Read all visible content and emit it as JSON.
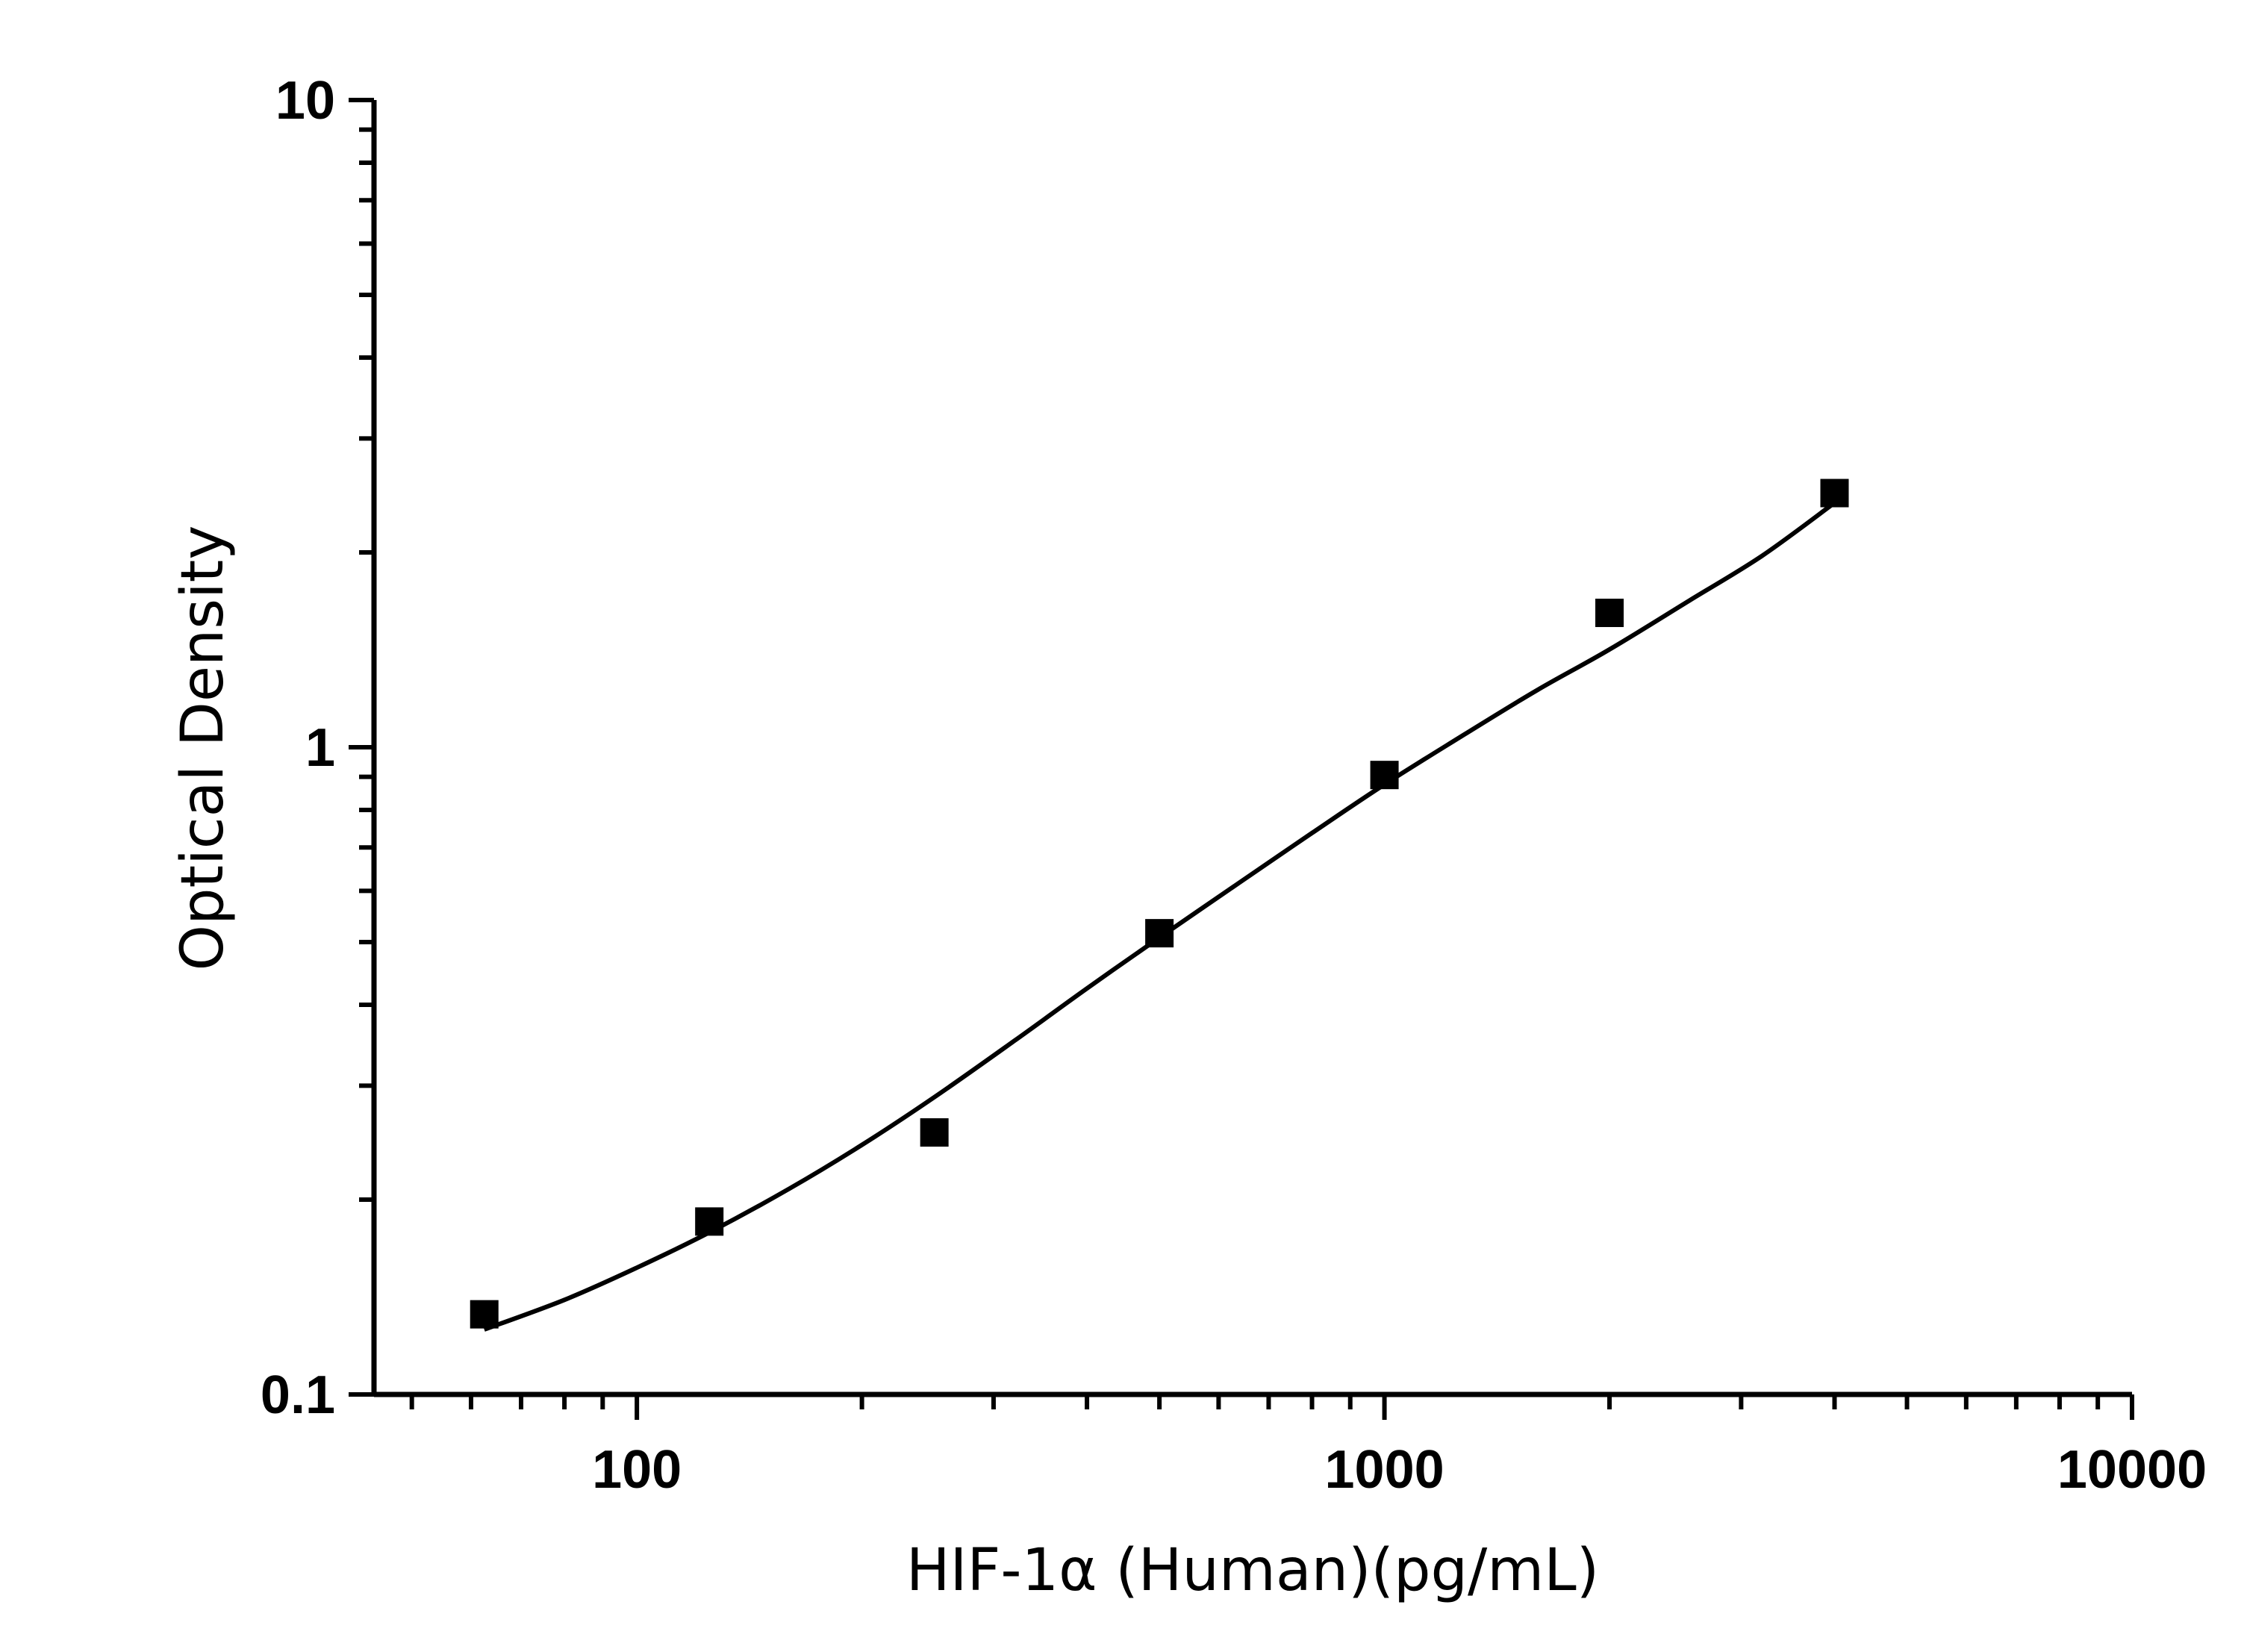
{
  "chart_data": {
    "type": "scatter",
    "xlabel": "HIF-1α (Human)(pg/mL)",
    "ylabel": "Optical Density",
    "x_scale": "log",
    "y_scale": "log",
    "xlim": [
      44.5,
      10000
    ],
    "ylim": [
      0.1,
      10
    ],
    "x_ticks": [
      {
        "value": 100,
        "label": "100"
      },
      {
        "value": 1000,
        "label": "1000"
      },
      {
        "value": 10000,
        "label": "10000"
      }
    ],
    "y_ticks": [
      {
        "value": 0.1,
        "label": "0.1"
      },
      {
        "value": 1,
        "label": "1"
      },
      {
        "value": 10,
        "label": "10"
      }
    ],
    "grid": false,
    "legend": "none",
    "series": [
      {
        "kind": "points",
        "marker": "square",
        "color": "#000000",
        "x": [
          62.5,
          125,
          250,
          500,
          1000,
          2000,
          4000
        ],
        "y": [
          0.133,
          0.185,
          0.254,
          0.516,
          0.906,
          1.613,
          2.47
        ]
      },
      {
        "kind": "fitted-curve",
        "color": "#000000",
        "x": [
          62.5,
          80,
          100,
          125,
          160,
          200,
          250,
          320,
          400,
          500,
          640,
          800,
          1000,
          1280,
          1600,
          2000,
          2560,
          3200,
          4000
        ],
        "y": [
          0.126,
          0.14,
          0.157,
          0.178,
          0.208,
          0.243,
          0.288,
          0.352,
          0.424,
          0.508,
          0.618,
          0.737,
          0.876,
          1.047,
          1.225,
          1.416,
          1.686,
          1.976,
          2.386
        ]
      }
    ]
  }
}
